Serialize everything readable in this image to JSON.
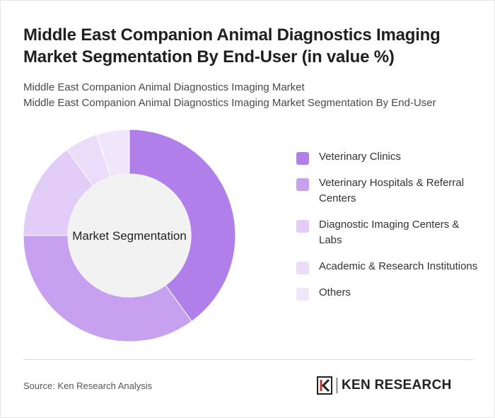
{
  "header": {
    "title": "Middle East Companion Animal Diagnostics Imaging Market Segmentation By End-User (in value %)",
    "subtitle_line1": "Middle East Companion Animal Diagnostics Imaging Market",
    "subtitle_line2": "Middle East Companion Animal Diagnostics Imaging Market Segmentation By End-User"
  },
  "chart_data": {
    "type": "pie",
    "center_label": "Market Segmentation",
    "categories": [
      "Veterinary Clinics",
      "Veterinary Hospitals & Referral Centers",
      "Diagnostic Imaging Centers & Labs",
      "Academic & Research Institutions",
      "Others"
    ],
    "values": [
      40,
      35,
      15,
      5,
      5
    ],
    "colors": [
      "#b17fea",
      "#c7a0f0",
      "#e1cdf8",
      "#ebdcfa",
      "#f0e6fb"
    ],
    "legend_position": "right"
  },
  "footer": {
    "source": "Source: Ken Research Analysis",
    "logo_text": "KEN RESEARCH"
  }
}
